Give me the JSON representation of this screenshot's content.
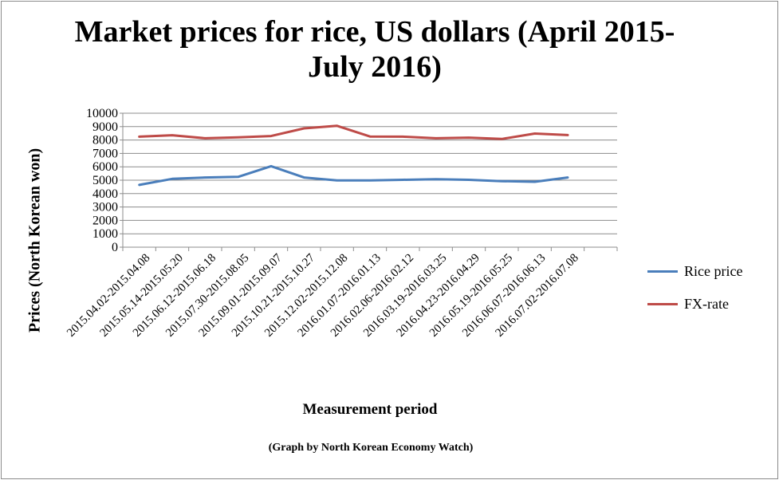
{
  "chart_data": {
    "type": "line",
    "title": "Market prices for rice, US dollars (April 2015-July 2016)",
    "xlabel": "Measurement period",
    "ylabel": "Prices (North Korean won)",
    "footnote": "(Graph by North Korean Economy Watch)",
    "ylim": [
      0,
      10000
    ],
    "yticks": [
      0,
      1000,
      2000,
      3000,
      4000,
      5000,
      6000,
      7000,
      8000,
      9000,
      10000
    ],
    "grid": true,
    "legend_position": "right",
    "categories": [
      "2015.04.02-2015.04.08",
      "2015.05.14-2015.05.20",
      "2015.06.12-2015.06.18",
      "2015.07.30-2015.08.05",
      "2015.09.01-2015.09.07",
      "2015.10.21-2015.10.27",
      "2015.12.02-2015.12.08",
      "2016.01.07-2016.01.13",
      "2016.02.06-2016.02.12",
      "2016.03.19-2016.03.25",
      "2016.04.23-2016.04.29",
      "2016.05.19-2016.05.25",
      "2016.06.07-2016.06.13",
      "2016.07.02-2016.07.08"
    ],
    "series": [
      {
        "name": "Rice price",
        "color": "#4a7ebb",
        "values": [
          4650,
          5100,
          5200,
          5250,
          6050,
          5200,
          4980,
          4980,
          5030,
          5080,
          5030,
          4930,
          4880,
          5200
        ]
      },
      {
        "name": "FX-rate",
        "color": "#be4b48",
        "values": [
          8250,
          8360,
          8130,
          8200,
          8300,
          8870,
          9060,
          8260,
          8250,
          8130,
          8180,
          8080,
          8480,
          8370
        ]
      }
    ]
  }
}
